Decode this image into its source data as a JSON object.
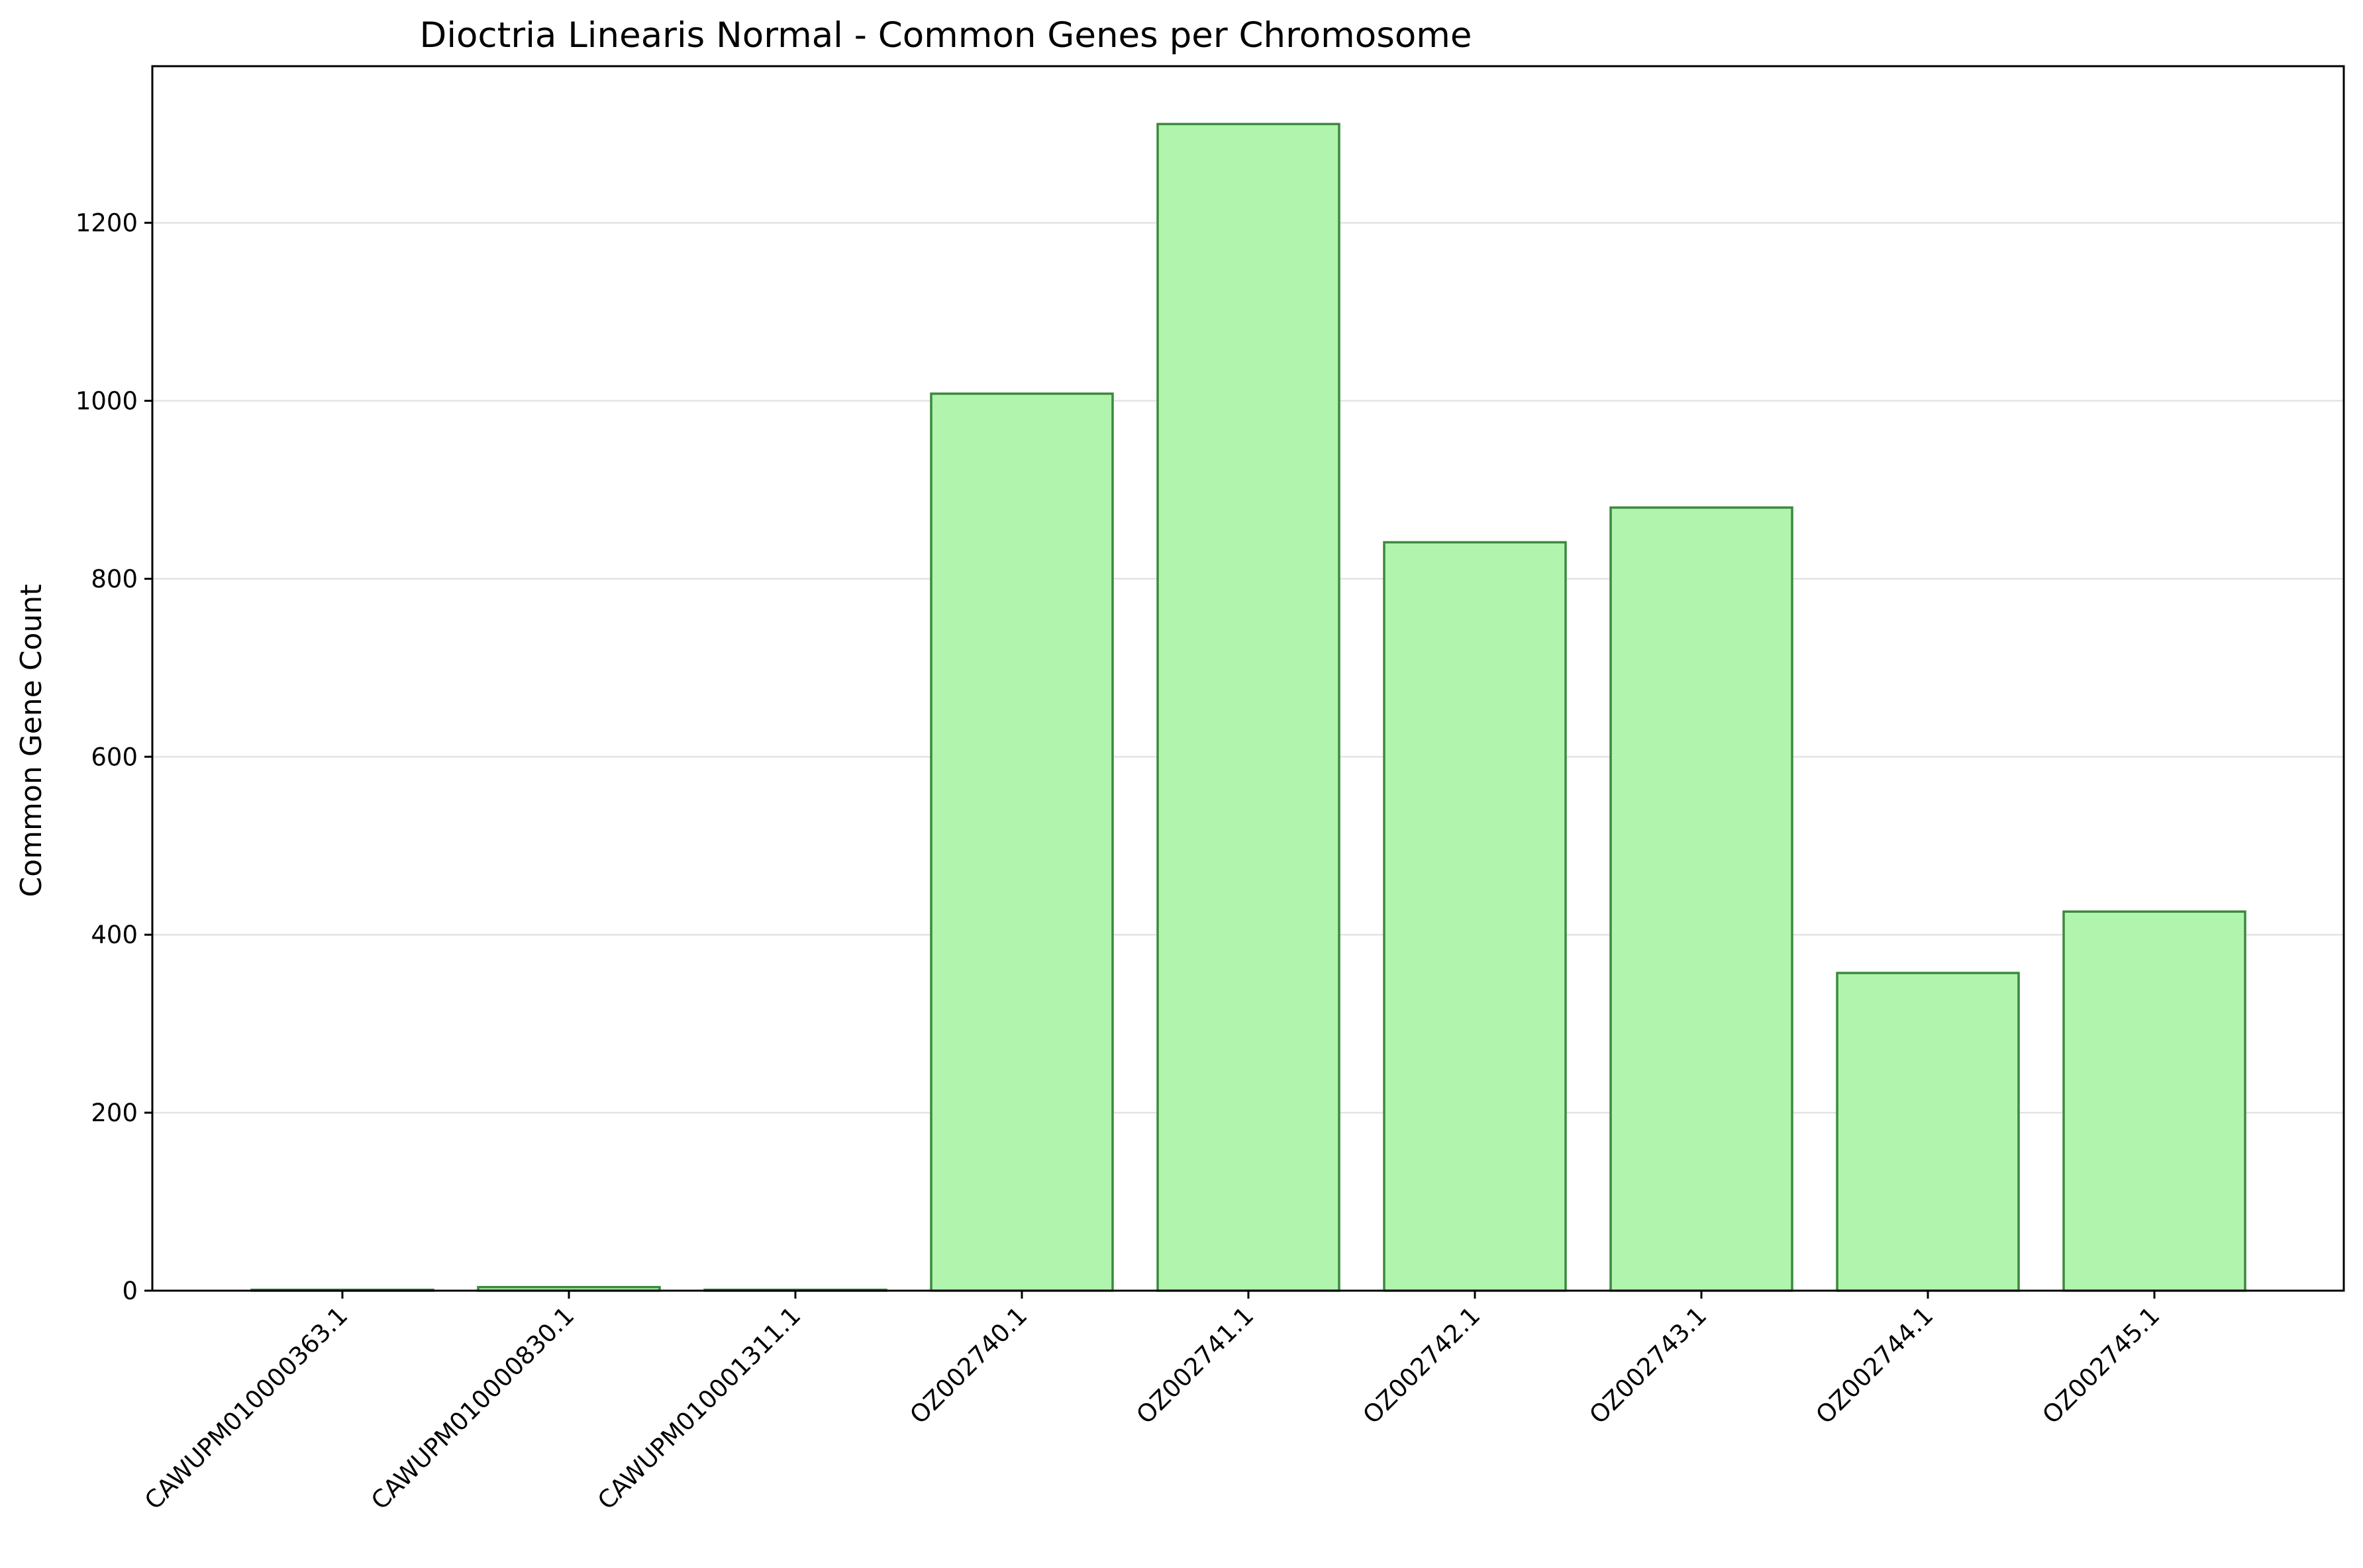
{
  "chart_data": {
    "type": "bar",
    "title": "Dioctria Linearis Normal - Common Genes per Chromosome",
    "xlabel": "",
    "ylabel": "Common Gene Count",
    "categories": [
      "CAWUPM010000363.1",
      "CAWUPM010000830.1",
      "CAWUPM010001311.1",
      "OZ002740.1",
      "OZ002741.1",
      "OZ002742.1",
      "OZ002743.1",
      "OZ002744.1",
      "OZ002745.1"
    ],
    "values": [
      1,
      4,
      1,
      1008,
      1311,
      841,
      880,
      357,
      426
    ],
    "ylim": [
      0,
      1376
    ],
    "yticks": [
      0,
      200,
      400,
      600,
      800,
      1000,
      1200
    ],
    "grid": "y",
    "colors": {
      "bar_fill": "#b1f4ae",
      "bar_edge": "#3b8a3d"
    }
  }
}
